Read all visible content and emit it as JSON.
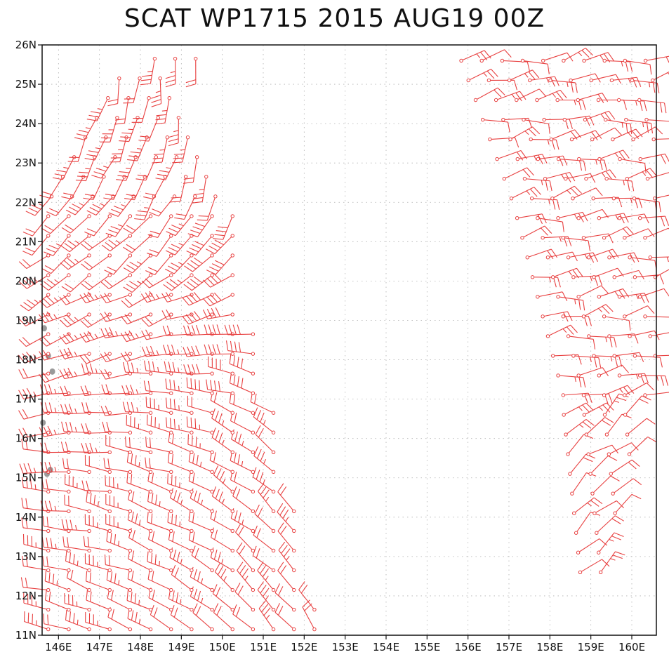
{
  "title": "SCAT WP1715 2015 AUG19 00Z",
  "map": {
    "lon_range": [
      145.6,
      160.6
    ],
    "lat_range": [
      11,
      26
    ],
    "lon_ticks": [
      146,
      147,
      148,
      149,
      150,
      151,
      152,
      153,
      154,
      155,
      156,
      157,
      158,
      159,
      160
    ],
    "lat_ticks": [
      11,
      12,
      13,
      14,
      15,
      16,
      17,
      18,
      19,
      20,
      21,
      22,
      23,
      24,
      25,
      26
    ],
    "lon_labels": [
      "146E",
      "147E",
      "148E",
      "149E",
      "150E",
      "151E",
      "152E",
      "153E",
      "154E",
      "155E",
      "156E",
      "157E",
      "158E",
      "159E",
      "160E"
    ],
    "lat_labels": [
      "11N",
      "12N",
      "13N",
      "14N",
      "15N",
      "16N",
      "17N",
      "18N",
      "19N",
      "20N",
      "21N",
      "22N",
      "23N",
      "24N",
      "25N",
      "26N"
    ],
    "barb_color": "#e84040",
    "land_color": "#9a9a9a",
    "grid_color": "#b0b0b0",
    "swaths": [
      {
        "name": "western-swath",
        "lat_min": 11,
        "lat_max": 25.9,
        "spacing": 0.45
      },
      {
        "name": "eastern-swath",
        "lat_min": 12.5,
        "lat_max": 25.7,
        "spacing": 0.45
      }
    ],
    "islands": [
      {
        "lon": 145.65,
        "lat": 18.8
      },
      {
        "lon": 145.75,
        "lat": 18.1
      },
      {
        "lon": 145.72,
        "lat": 15.1
      },
      {
        "lon": 145.8,
        "lat": 15.2
      },
      {
        "lon": 145.62,
        "lat": 16.4
      },
      {
        "lon": 145.85,
        "lat": 17.7
      }
    ]
  }
}
